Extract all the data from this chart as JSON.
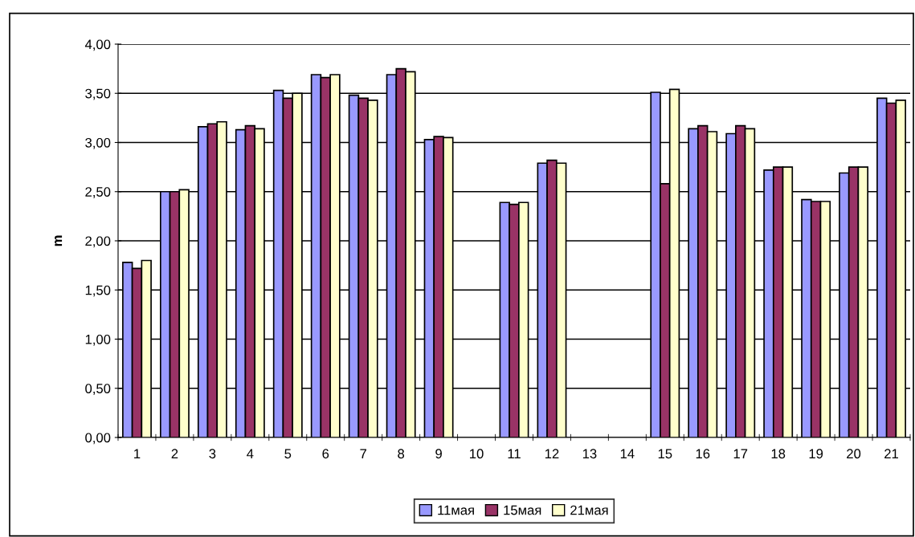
{
  "chart_data": {
    "type": "bar",
    "ylabel": "m",
    "categories": [
      "1",
      "2",
      "3",
      "4",
      "5",
      "6",
      "7",
      "8",
      "9",
      "10",
      "11",
      "12",
      "13",
      "14",
      "15",
      "16",
      "17",
      "18",
      "19",
      "20",
      "21"
    ],
    "series": [
      {
        "name": "11мая",
        "color": "#9999ff",
        "values": [
          1.78,
          2.5,
          3.16,
          3.13,
          3.53,
          3.69,
          3.48,
          3.69,
          3.03,
          null,
          2.39,
          2.79,
          null,
          null,
          3.51,
          3.14,
          3.09,
          2.72,
          2.42,
          2.69,
          3.45
        ]
      },
      {
        "name": "15мая",
        "color": "#993366",
        "values": [
          1.72,
          2.5,
          3.19,
          3.17,
          3.45,
          3.66,
          3.45,
          3.75,
          3.06,
          null,
          2.37,
          2.82,
          null,
          null,
          2.58,
          3.17,
          3.17,
          2.75,
          2.4,
          2.75,
          3.4
        ]
      },
      {
        "name": "21мая",
        "color": "#ffffcc",
        "values": [
          1.8,
          2.52,
          3.21,
          3.14,
          3.5,
          3.69,
          3.43,
          3.72,
          3.05,
          null,
          2.39,
          2.79,
          null,
          null,
          3.54,
          3.11,
          3.14,
          2.75,
          2.4,
          2.75,
          3.43
        ]
      }
    ],
    "ylim": [
      0,
      4
    ],
    "yticks": [
      {
        "value": 0,
        "label": "0,00"
      },
      {
        "value": 0.5,
        "label": "0,50"
      },
      {
        "value": 1,
        "label": "1,00"
      },
      {
        "value": 1.5,
        "label": "1,50"
      },
      {
        "value": 2,
        "label": "2,00"
      },
      {
        "value": 2.5,
        "label": "2,50"
      },
      {
        "value": 3,
        "label": "3,00"
      },
      {
        "value": 3.5,
        "label": "3,50"
      },
      {
        "value": 4,
        "label": "4,00"
      }
    ],
    "grid": "y",
    "legend": "bottom"
  }
}
